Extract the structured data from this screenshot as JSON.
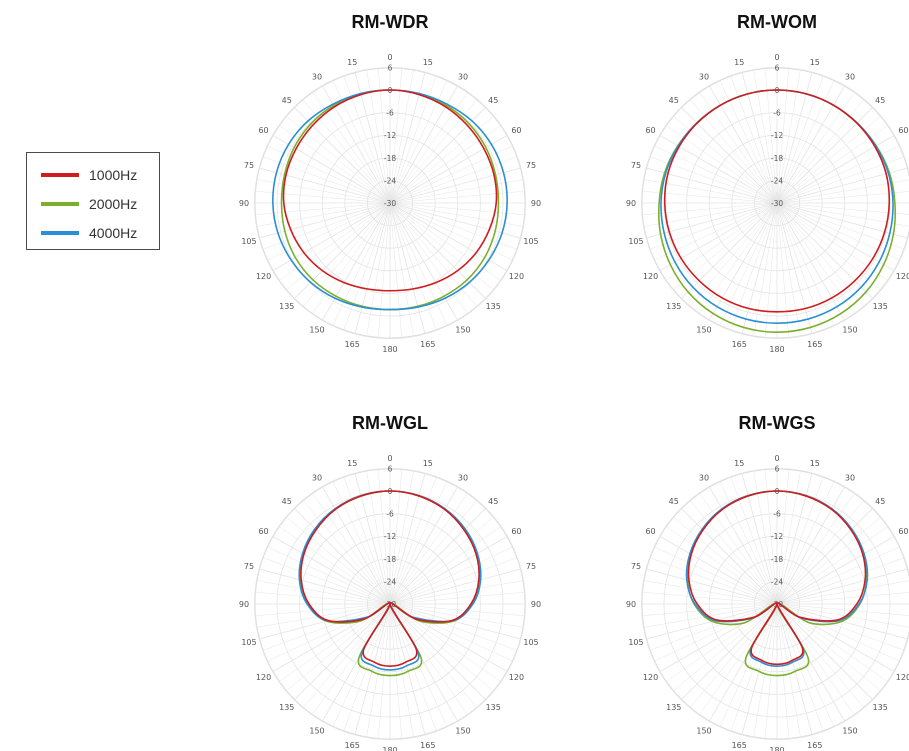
{
  "colors": {
    "1000Hz": "#d01c1f",
    "2000Hz": "#7cb02c",
    "4000Hz": "#2a8fd4",
    "grid": "#e4e4e4",
    "text": "#555555"
  },
  "legend": {
    "placement": "left",
    "items": [
      {
        "label": "1000Hz",
        "color": "#d01c1f"
      },
      {
        "label": "2000Hz",
        "color": "#7cb02c"
      },
      {
        "label": "4000Hz",
        "color": "#2a8fd4"
      }
    ]
  },
  "chart_data": [
    {
      "type": "polar-line",
      "title": "RM-WDR",
      "radial_labels": [
        "6",
        "0",
        "-6",
        "-12",
        "-18",
        "-24",
        "-30"
      ],
      "rlim": [
        -30,
        6
      ],
      "angle_labels": [
        "0",
        "15",
        "30",
        "45",
        "60",
        "75",
        "90",
        "105",
        "120",
        "135",
        "150",
        "165",
        "180",
        "165",
        "150",
        "135",
        "120",
        "105",
        "90",
        "75",
        "60",
        "45",
        "30",
        "15"
      ],
      "series": [
        {
          "name": "1000Hz",
          "angles_deg": [
            0,
            15,
            30,
            45,
            60,
            75,
            90,
            105,
            120,
            135,
            150,
            165,
            180
          ],
          "values_db": [
            0,
            -0.2,
            -0.5,
            -0.9,
            -1.2,
            -1.4,
            -1.8,
            -2.7,
            -3.6,
            -4.6,
            -5.6,
            -6.4,
            -6.7
          ]
        },
        {
          "name": "2000Hz",
          "angles_deg": [
            0,
            15,
            30,
            45,
            60,
            75,
            90,
            105,
            120,
            135,
            150,
            165,
            180
          ],
          "values_db": [
            0,
            0,
            -0.1,
            -0.3,
            -0.6,
            -1.0,
            -1.2,
            -1.1,
            -1.0,
            -1.1,
            -1.4,
            -1.6,
            -1.7
          ]
        },
        {
          "name": "4000Hz",
          "angles_deg": [
            0,
            15,
            30,
            45,
            60,
            75,
            90,
            105,
            120,
            135,
            150,
            165,
            180
          ],
          "values_db": [
            0,
            0.1,
            0.3,
            0.8,
            1.1,
            1.2,
            1.1,
            0.8,
            0.3,
            -0.2,
            -0.8,
            -1.4,
            -1.7
          ]
        }
      ]
    },
    {
      "type": "polar-line",
      "title": "RM-WOM",
      "radial_labels": [
        "6",
        "0",
        "-6",
        "-12",
        "-18",
        "-24",
        "-30"
      ],
      "rlim": [
        -30,
        6
      ],
      "angle_labels": [
        "0",
        "15",
        "30",
        "45",
        "60",
        "75",
        "90",
        "105",
        "120",
        "135",
        "150",
        "165",
        "180",
        "165",
        "150",
        "135",
        "120",
        "105",
        "90",
        "75",
        "60",
        "45",
        "30",
        "15"
      ],
      "series": [
        {
          "name": "1000Hz",
          "angles_deg": [
            0,
            15,
            30,
            45,
            60,
            75,
            90,
            105,
            120,
            135,
            150,
            165,
            180
          ],
          "values_db": [
            0,
            0,
            0,
            0,
            0,
            0,
            -0.2,
            -0.4,
            -0.6,
            -0.8,
            -0.9,
            -1.0,
            -1.1
          ]
        },
        {
          "name": "2000Hz",
          "angles_deg": [
            0,
            15,
            30,
            45,
            60,
            75,
            90,
            105,
            120,
            135,
            150,
            165,
            180
          ],
          "values_db": [
            0,
            0,
            0,
            0,
            0.4,
            0.9,
            1.3,
            2.0,
            2.7,
            3.4,
            3.9,
            4.2,
            4.3
          ]
        },
        {
          "name": "4000Hz",
          "angles_deg": [
            0,
            15,
            30,
            45,
            60,
            75,
            90,
            105,
            120,
            135,
            150,
            165,
            180
          ],
          "values_db": [
            0,
            0,
            0,
            0.1,
            0.3,
            0.6,
            0.8,
            1.0,
            1.3,
            1.6,
            1.8,
            1.9,
            1.9
          ]
        }
      ]
    },
    {
      "type": "polar-line",
      "title": "RM-WGL",
      "radial_labels": [
        "6",
        "0",
        "-6",
        "-12",
        "-18",
        "-24",
        "-30"
      ],
      "rlim": [
        -30,
        6
      ],
      "angle_labels": [
        "0",
        "15",
        "30",
        "45",
        "60",
        "75",
        "90",
        "105",
        "120",
        "135",
        "150",
        "165",
        "180",
        "165",
        "150",
        "135",
        "120",
        "105",
        "90",
        "75",
        "60",
        "45",
        "30",
        "15"
      ],
      "series": [
        {
          "name": "1000Hz",
          "angles_deg": [
            0,
            15,
            30,
            45,
            60,
            75,
            90,
            105,
            120,
            135,
            150,
            165,
            180
          ],
          "values_db": [
            0,
            -0.3,
            -1.0,
            -2.2,
            -3.6,
            -5.6,
            -8.5,
            -13.0,
            -22.0,
            -30,
            -16.0,
            -14.0,
            -13.5
          ]
        },
        {
          "name": "2000Hz",
          "angles_deg": [
            0,
            15,
            30,
            45,
            60,
            75,
            90,
            105,
            120,
            135,
            150,
            165,
            180
          ],
          "values_db": [
            0,
            -0.3,
            -0.9,
            -2.0,
            -3.4,
            -5.4,
            -8.2,
            -12.5,
            -21.0,
            -30,
            -13.5,
            -11.5,
            -11.0
          ]
        },
        {
          "name": "4000Hz",
          "angles_deg": [
            0,
            15,
            30,
            45,
            60,
            75,
            90,
            105,
            120,
            135,
            150,
            165,
            180
          ],
          "values_db": [
            0,
            -0.2,
            -0.8,
            -1.8,
            -3.2,
            -5.1,
            -8.0,
            -12.8,
            -23.0,
            -30,
            -15.0,
            -13.0,
            -12.5
          ]
        }
      ]
    },
    {
      "type": "polar-line",
      "title": "RM-WGS",
      "radial_labels": [
        "6",
        "0",
        "-6",
        "-12",
        "-18",
        "-24",
        "-30"
      ],
      "rlim": [
        -30,
        6
      ],
      "angle_labels": [
        "0",
        "15",
        "30",
        "45",
        "60",
        "75",
        "90",
        "105",
        "120",
        "135",
        "150",
        "165",
        "180",
        "165",
        "150",
        "135",
        "120",
        "105",
        "90",
        "75",
        "60",
        "45",
        "30",
        "15"
      ],
      "series": [
        {
          "name": "1000Hz",
          "angles_deg": [
            0,
            15,
            30,
            45,
            60,
            75,
            90,
            105,
            120,
            135,
            150,
            165,
            180
          ],
          "values_db": [
            0,
            -0.3,
            -1.0,
            -2.2,
            -3.7,
            -5.8,
            -8.8,
            -13.5,
            -23.0,
            -30,
            -16.5,
            -14.5,
            -14.0
          ]
        },
        {
          "name": "2000Hz",
          "angles_deg": [
            0,
            15,
            30,
            45,
            60,
            75,
            90,
            105,
            120,
            135,
            150,
            165,
            180
          ],
          "values_db": [
            0,
            -0.3,
            -0.9,
            -2.0,
            -3.4,
            -5.4,
            -8.0,
            -12.2,
            -20.0,
            -30,
            -13.5,
            -11.5,
            -11.0
          ]
        },
        {
          "name": "4000Hz",
          "angles_deg": [
            0,
            15,
            30,
            45,
            60,
            75,
            90,
            105,
            120,
            135,
            150,
            165,
            180
          ],
          "values_db": [
            0,
            -0.2,
            -0.8,
            -1.9,
            -3.3,
            -5.2,
            -8.2,
            -13.0,
            -22.5,
            -30,
            -16.0,
            -14.0,
            -13.5
          ]
        }
      ]
    }
  ]
}
